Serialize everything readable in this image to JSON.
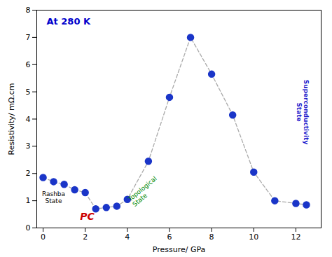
{
  "chart_data": {
    "type": "scatter",
    "x": [
      0.0,
      0.5,
      1.0,
      1.5,
      2.0,
      2.5,
      3.0,
      3.5,
      4.0,
      5.0,
      6.0,
      7.0,
      8.0,
      9.0,
      10.0,
      11.0,
      12.0,
      12.5
    ],
    "series": [
      {
        "type": "line",
        "line_style": "dashed",
        "color": "#aaaaaa",
        "values": [
          1.85,
          1.7,
          1.6,
          1.4,
          1.3,
          0.7,
          0.75,
          0.8,
          1.05,
          2.45,
          4.8,
          7.0,
          5.65,
          4.15,
          2.05,
          1.0,
          0.9,
          0.85
        ]
      },
      {
        "type": "scatter",
        "marker": "circle",
        "color": "#1a35c8",
        "values": [
          1.85,
          1.7,
          1.6,
          1.4,
          1.3,
          0.7,
          0.75,
          0.8,
          1.05,
          2.45,
          4.8,
          7.0,
          5.65,
          4.15,
          2.05,
          1.0,
          0.9,
          0.85
        ]
      }
    ],
    "xlabel": "Pressure/ GPa",
    "ylabel": "Resistivity/ mΩ.cm",
    "xlim": [
      -0.3,
      13.2
    ],
    "ylim": [
      0,
      8
    ],
    "xticks": [
      0,
      2,
      4,
      6,
      8,
      10,
      12
    ],
    "yticks": [
      0,
      1,
      2,
      3,
      4,
      5,
      6,
      7,
      8
    ],
    "grid": false,
    "annotations": [
      {
        "text": "At 280 K",
        "color": "#0000cc"
      },
      {
        "text": "Rashba\nState",
        "color": "#000000"
      },
      {
        "text": "PC",
        "color": "#cc0000"
      },
      {
        "text": "Topological\nState",
        "color": "#008800"
      },
      {
        "text": "Superconductivity\nState",
        "color": "#1a1acc"
      }
    ]
  }
}
